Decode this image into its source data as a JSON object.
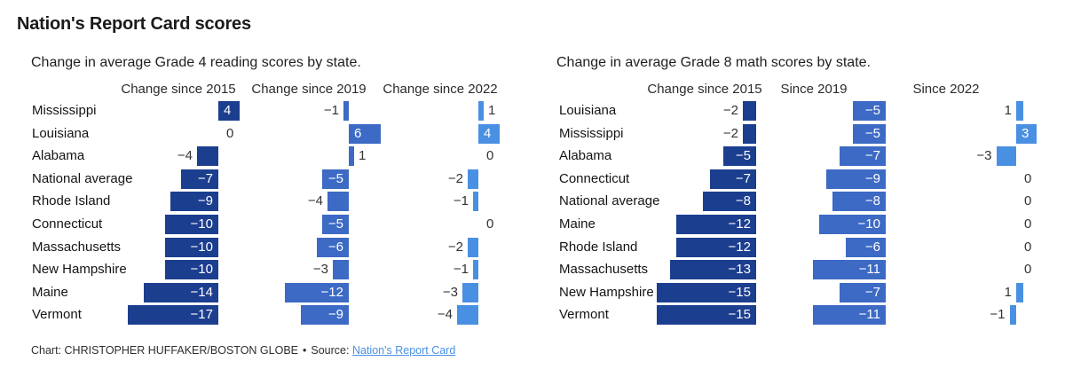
{
  "title": "Nation's Report Card scores",
  "colors": {
    "series_2015": "#1c3e8f",
    "series_2019": "#3c6ac5",
    "series_2022": "#4a90e2",
    "link_blue": "#4a90e2",
    "value_label_dark": "#333333",
    "value_label_light": "#ffffff"
  },
  "chart_data": [
    {
      "type": "bar",
      "orientation": "horizontal",
      "title": "Change in average Grade 4 reading scores by state.",
      "categories": [
        "Mississippi",
        "Louisiana",
        "Alabama",
        "National average",
        "Rhode Island",
        "Connecticut",
        "Massachusetts",
        "New Hampshire",
        "Maine",
        "Vermont"
      ],
      "series": [
        {
          "name": "Change since 2015",
          "color": "#1c3e8f",
          "values": [
            4,
            0,
            -4,
            -7,
            -9,
            -10,
            -10,
            -10,
            -14,
            -17
          ]
        },
        {
          "name": "Change since 2019",
          "color": "#3c6ac5",
          "values": [
            -1,
            6,
            1,
            -5,
            -4,
            -5,
            -6,
            -3,
            -12,
            -9
          ]
        },
        {
          "name": "Change since 2022",
          "color": "#4a90e2",
          "values": [
            1,
            4,
            0,
            -2,
            -1,
            0,
            -2,
            -1,
            -3,
            -4
          ]
        }
      ],
      "xlim": [
        -18,
        7
      ],
      "grid": false,
      "data_labels": true
    },
    {
      "type": "bar",
      "orientation": "horizontal",
      "title": "Change in average Grade 8 math scores by state.",
      "categories": [
        "Louisiana",
        "Mississippi",
        "Alabama",
        "Connecticut",
        "National average",
        "Maine",
        "Rhode Island",
        "Massachusetts",
        "New Hampshire",
        "Vermont"
      ],
      "series": [
        {
          "name": "Change since 2015",
          "color": "#1c3e8f",
          "values": [
            -2,
            -2,
            -5,
            -7,
            -8,
            -12,
            -12,
            -13,
            -15,
            -15
          ]
        },
        {
          "name": "Since 2019",
          "color": "#3c6ac5",
          "values": [
            -5,
            -5,
            -7,
            -9,
            -8,
            -10,
            -6,
            -11,
            -7,
            -11
          ]
        },
        {
          "name": "Since 2022",
          "color": "#4a90e2",
          "values": [
            1,
            3,
            -3,
            0,
            0,
            0,
            0,
            0,
            1,
            -1
          ]
        }
      ],
      "xlim": [
        -16,
        4
      ],
      "grid": false,
      "data_labels": true
    }
  ],
  "footer": {
    "credit": "Chart: CHRISTOPHER HUFFAKER/BOSTON GLOBE",
    "separator": "•",
    "source_label": "Source:",
    "source_link": "Nation's Report Card"
  }
}
